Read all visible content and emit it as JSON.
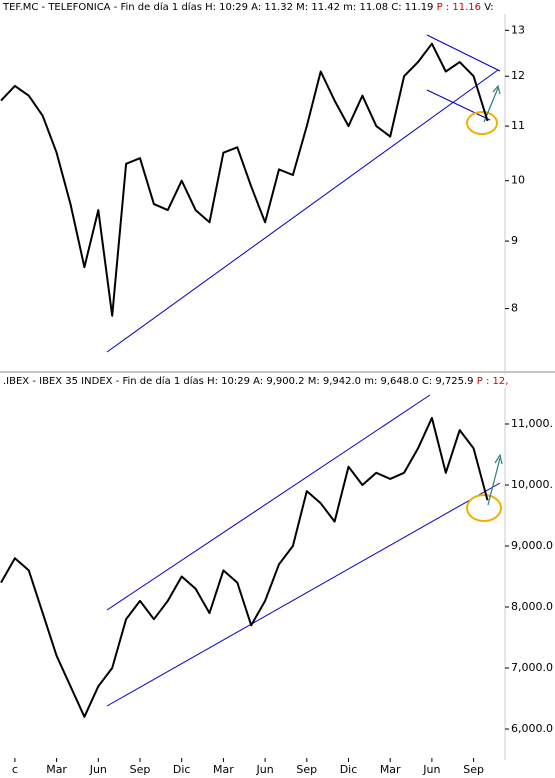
{
  "chart_data": [
    {
      "type": "line",
      "title": "TEF.MC - TELEFONICA - Fin de día 1 días H: 10:29 A: 11.32 M: 11.42 m: 11.08 C: 11.19",
      "last_price": "P : 11.16",
      "volume_label": "V:",
      "log_scale": true,
      "color": "#000000",
      "values": [
        11.5,
        11.8,
        11.6,
        11.2,
        10.5,
        9.6,
        8.6,
        9.5,
        7.9,
        10.3,
        10.4,
        9.6,
        9.5,
        10.0,
        9.5,
        9.3,
        10.5,
        10.6,
        9.9,
        9.3,
        10.2,
        10.1,
        11.0,
        12.1,
        11.5,
        11.0,
        11.6,
        11.0,
        10.8,
        12.0,
        12.3,
        12.7,
        12.1,
        12.3,
        12.0,
        11.1
      ],
      "ylim": [
        7.25,
        13.47
      ],
      "yticks": [
        8,
        9,
        10,
        11,
        12,
        13
      ]
    },
    {
      "type": "line",
      "title": ".IBEX - IBEX 35 INDEX - Fin de día 1 días H: 10:29 A: 9,900.2 M: 9,942.0 m: 9,648.0 C: 9,725.9",
      "last_price": "P : 12,",
      "log_scale": false,
      "color": "#000000",
      "categories": [
        null,
        "c",
        null,
        null,
        "Mar",
        null,
        null,
        "Jun",
        null,
        null,
        "Sep",
        null,
        null,
        "Dic",
        null,
        null,
        "Mar",
        null,
        null,
        "Jun",
        null,
        null,
        "Sep",
        null,
        null,
        "Dic",
        null,
        null,
        "Mar",
        null,
        null,
        "Jun",
        null,
        null,
        "Sep",
        null
      ],
      "values": [
        8400,
        8800,
        8600,
        7900,
        7200,
        6700,
        6200,
        6700,
        7000,
        7800,
        8100,
        7800,
        8100,
        8500,
        8300,
        7900,
        8600,
        8400,
        7700,
        8100,
        8700,
        9000,
        9900,
        9700,
        9400,
        10300,
        10000,
        10200,
        10100,
        10200,
        10600,
        11100,
        10200,
        10900,
        10600,
        9750
      ],
      "ylim": [
        5525,
        11557
      ],
      "yticks": [
        {
          "value": 6000,
          "label": "6,000.0"
        },
        {
          "value": 7000,
          "label": "7,000.0"
        },
        {
          "value": 8000,
          "label": "8,000.0"
        },
        {
          "value": 9000,
          "label": "9,000.0"
        },
        {
          "value": 10000,
          "label": "10,000."
        },
        {
          "value": 11000,
          "label": "11,000."
        }
      ]
    }
  ]
}
